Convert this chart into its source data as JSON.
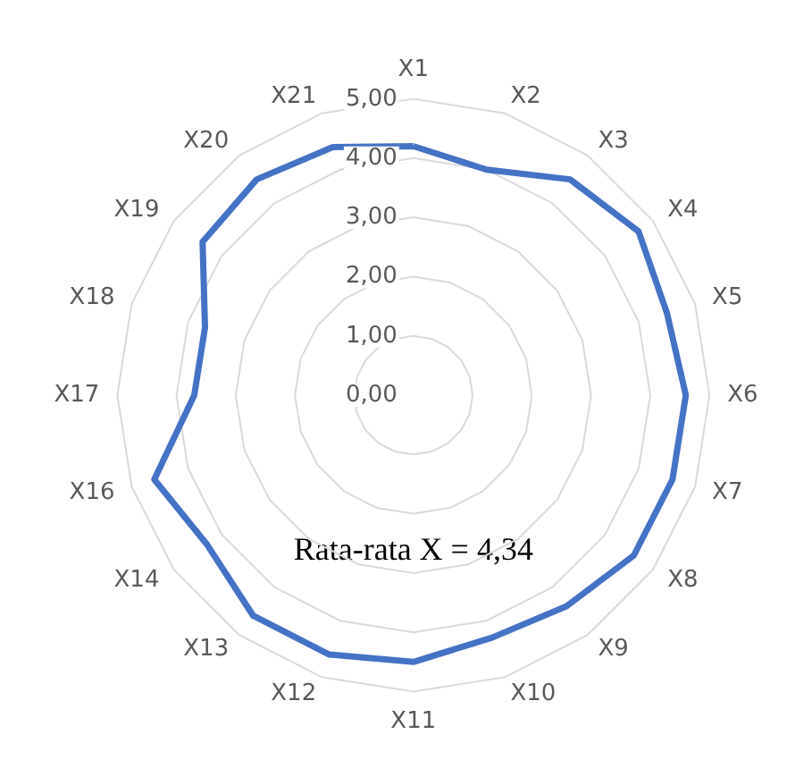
{
  "chart_data": {
    "type": "radar",
    "categories": [
      "X1",
      "X2",
      "X3",
      "X4",
      "X5",
      "X6",
      "X7",
      "X8",
      "X9",
      "X10",
      "X11",
      "X12",
      "X13",
      "X14",
      "X16",
      "X17",
      "X18",
      "X19",
      "X20",
      "X21"
    ],
    "series": [
      {
        "color": "#4472c4",
        "values": [
          4.2,
          4.0,
          4.5,
          4.7,
          4.5,
          4.6,
          4.6,
          4.6,
          4.4,
          4.3,
          4.5,
          4.6,
          4.6,
          4.3,
          4.6,
          3.7,
          3.7,
          4.4,
          4.5,
          4.4
        ]
      }
    ],
    "ylim": [
      0,
      5
    ],
    "yticks": [
      {
        "value": 0,
        "label": "0,00"
      },
      {
        "value": 1,
        "label": "1,00"
      },
      {
        "value": 2,
        "label": "2,00"
      },
      {
        "value": 3,
        "label": "3,00"
      },
      {
        "value": 4,
        "label": "4,00"
      },
      {
        "value": 5,
        "label": "5,00"
      }
    ],
    "grid": true,
    "marker": "none",
    "annotations": [
      "Rata-rata X = 4,34"
    ]
  }
}
